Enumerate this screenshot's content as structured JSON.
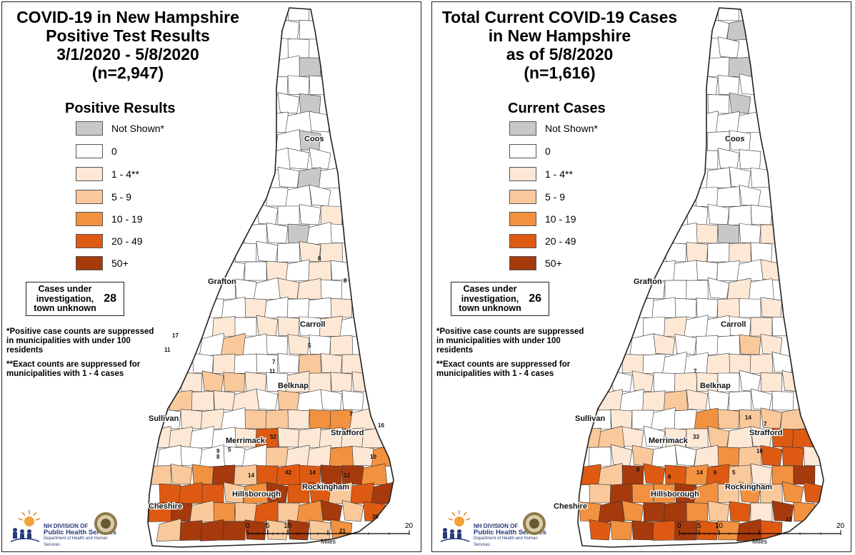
{
  "colors": {
    "not_shown": "#c8c8c8",
    "zero": "#ffffff",
    "c1_4": "#fde8d6",
    "c5_9": "#f9c99c",
    "c10_19": "#f2913f",
    "c20_49": "#de5a12",
    "c50": "#a63a0c",
    "border": "#333333"
  },
  "left": {
    "title": [
      "COVID-19 in New Hampshire",
      "Positive Test Results",
      "3/1/2020 - 5/8/2020",
      "(n=2,947)"
    ],
    "legend_title": "Positive Results",
    "legend": [
      "Not Shown*",
      "0",
      "1 - 4**",
      "5 - 9",
      "10 - 19",
      "20 - 49",
      "50+"
    ],
    "unknown_label": "Cases under investigation, town unknown",
    "unknown_value": "28",
    "note1": "*Positive case counts are suppressed in municipalities with under 100 residents",
    "note2": "**Exact counts are suppressed for municipalities with 1 - 4 cases",
    "counties": [
      "Coos",
      "Grafton",
      "Carroll",
      "Belknap",
      "Sullivan",
      "Merrimack",
      "Strafford",
      "Hillsborough",
      "Rockingham",
      "Cheshire"
    ],
    "town_numbers": [
      "6",
      "8",
      "17",
      "11",
      "5",
      "7",
      "11",
      "52",
      "14",
      "42",
      "5",
      "10",
      "30",
      "21",
      "16",
      "14",
      "12",
      "9",
      "8",
      "7"
    ],
    "scale_ticks": [
      "0",
      "5",
      "10",
      "20"
    ],
    "scale_unit": "Miles"
  },
  "right": {
    "title": [
      "Total Current COVID-19 Cases",
      "in New Hampshire",
      "as of 5/8/2020",
      "(n=1,616)"
    ],
    "legend_title": "Current Cases",
    "legend": [
      "Not Shown*",
      "0",
      "1 - 4**",
      "5 - 9",
      "10 - 19",
      "20 - 49",
      "50+"
    ],
    "unknown_label": "Cases under investigation, town unknown",
    "unknown_value": "26",
    "note1": "*Positive case counts are suppressed in municipalities with under 100 residents",
    "note2": "**Exact counts are suppressed for municipalities with 1 - 4 cases",
    "counties": [
      "Coos",
      "Grafton",
      "Carroll",
      "Belknap",
      "Sullivan",
      "Merrimack",
      "Strafford",
      "Hillsborough",
      "Rockingham",
      "Cheshire"
    ],
    "town_numbers": [
      "7",
      "33",
      "14",
      "10",
      "7",
      "6",
      "12",
      "14",
      "6",
      "5",
      "8"
    ],
    "scale_ticks": [
      "0",
      "5",
      "10",
      "20"
    ],
    "scale_unit": "Miles"
  },
  "logo": {
    "line1": "NH DIVISION OF",
    "line2": "Public Health Services",
    "line3": "Department of Health and Human Services"
  }
}
